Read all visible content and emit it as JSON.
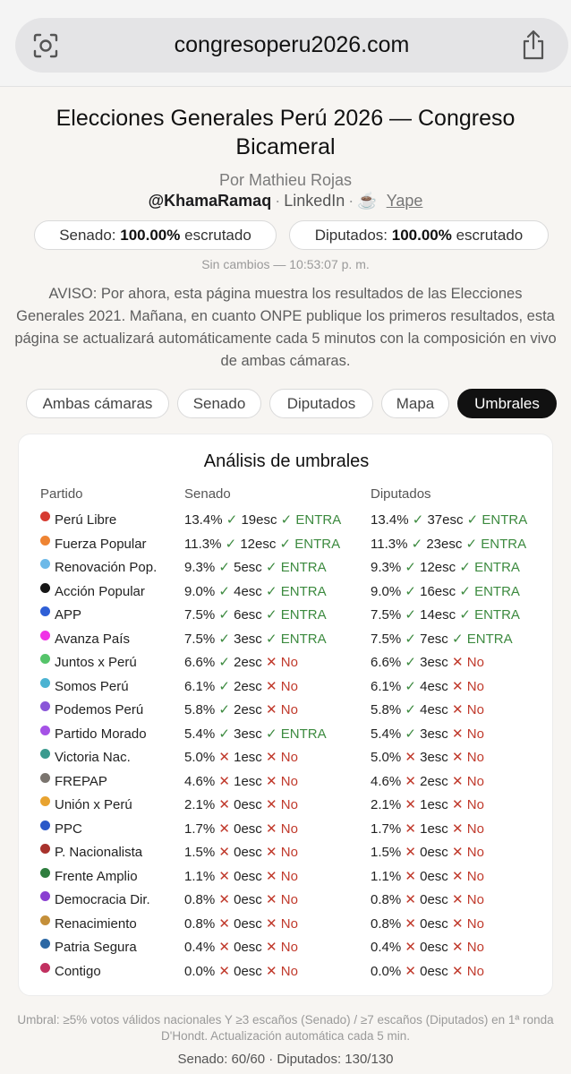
{
  "browser": {
    "url": "congresoperu2026.com",
    "lens_icon": "camera-lens-icon",
    "share_icon": "share-icon"
  },
  "header": {
    "title": "Elecciones Generales Perú 2026 — Congreso Bicameral",
    "author": "Por Mathieu Rojas",
    "handle": "@KhamaRamaq",
    "separator": "·",
    "linkedin": "LinkedIn",
    "yape_icon": "☕",
    "yape": "Yape"
  },
  "status": {
    "senado_label": "Senado:",
    "senado_pct": "100.00%",
    "senado_suffix": "escrutado",
    "diputados_label": "Diputados:",
    "diputados_pct": "100.00%",
    "diputados_suffix": "escrutado",
    "updated": "Sin cambios — 10:53:07 p. m."
  },
  "notice": "AVISO: Por ahora, esta página muestra los resultados de las Elecciones Generales 2021. Mañana, en cuanto ONPE publique los primeros resultados, esta página se actualizará automáticamente cada 5 minutos con la composición en vivo de ambas cámaras.",
  "tabs": [
    {
      "label": "Ambas cámaras",
      "active": false
    },
    {
      "label": "Senado",
      "active": false
    },
    {
      "label": "Diputados",
      "active": false
    },
    {
      "label": "Mapa",
      "active": false
    },
    {
      "label": "Umbrales",
      "active": true
    }
  ],
  "table": {
    "title": "Análisis de umbrales",
    "headers": [
      "Partido",
      "Senado",
      "Diputados"
    ],
    "check": "✓",
    "cross": "✕",
    "rows": [
      {
        "party": "Perú Libre",
        "color": "#d63b32",
        "sen_pct": "13.4%",
        "sen_pct_ok": true,
        "sen_seats": "19esc",
        "sen_enter": true,
        "dip_pct": "13.4%",
        "dip_pct_ok": true,
        "dip_seats": "37esc",
        "dip_enter": true
      },
      {
        "party": "Fuerza Popular",
        "color": "#ee8433",
        "sen_pct": "11.3%",
        "sen_pct_ok": true,
        "sen_seats": "12esc",
        "sen_enter": true,
        "dip_pct": "11.3%",
        "dip_pct_ok": true,
        "dip_seats": "23esc",
        "dip_enter": true
      },
      {
        "party": "Renovación Pop.",
        "color": "#6db9e8",
        "sen_pct": "9.3%",
        "sen_pct_ok": true,
        "sen_seats": "5esc",
        "sen_enter": true,
        "dip_pct": "9.3%",
        "dip_pct_ok": true,
        "dip_seats": "12esc",
        "dip_enter": true
      },
      {
        "party": "Acción Popular",
        "color": "#161616",
        "sen_pct": "9.0%",
        "sen_pct_ok": true,
        "sen_seats": "4esc",
        "sen_enter": true,
        "dip_pct": "9.0%",
        "dip_pct_ok": true,
        "dip_seats": "16esc",
        "dip_enter": true
      },
      {
        "party": "APP",
        "color": "#2f5fd6",
        "sen_pct": "7.5%",
        "sen_pct_ok": true,
        "sen_seats": "6esc",
        "sen_enter": true,
        "dip_pct": "7.5%",
        "dip_pct_ok": true,
        "dip_seats": "14esc",
        "dip_enter": true
      },
      {
        "party": "Avanza País",
        "color": "#f032e6",
        "sen_pct": "7.5%",
        "sen_pct_ok": true,
        "sen_seats": "3esc",
        "sen_enter": true,
        "dip_pct": "7.5%",
        "dip_pct_ok": true,
        "dip_seats": "7esc",
        "dip_enter": true
      },
      {
        "party": "Juntos x Perú",
        "color": "#55c46a",
        "sen_pct": "6.6%",
        "sen_pct_ok": true,
        "sen_seats": "2esc",
        "sen_enter": false,
        "dip_pct": "6.6%",
        "dip_pct_ok": true,
        "dip_seats": "3esc",
        "dip_enter": false
      },
      {
        "party": "Somos Perú",
        "color": "#4bb3d2",
        "sen_pct": "6.1%",
        "sen_pct_ok": true,
        "sen_seats": "2esc",
        "sen_enter": false,
        "dip_pct": "6.1%",
        "dip_pct_ok": true,
        "dip_seats": "4esc",
        "dip_enter": false
      },
      {
        "party": "Podemos Perú",
        "color": "#8a56d8",
        "sen_pct": "5.8%",
        "sen_pct_ok": true,
        "sen_seats": "2esc",
        "sen_enter": false,
        "dip_pct": "5.8%",
        "dip_pct_ok": true,
        "dip_seats": "4esc",
        "dip_enter": false
      },
      {
        "party": "Partido Morado",
        "color": "#a552e6",
        "sen_pct": "5.4%",
        "sen_pct_ok": true,
        "sen_seats": "3esc",
        "sen_enter": true,
        "dip_pct": "5.4%",
        "dip_pct_ok": true,
        "dip_seats": "3esc",
        "dip_enter": false
      },
      {
        "party": "Victoria Nac.",
        "color": "#3a9a8e",
        "sen_pct": "5.0%",
        "sen_pct_ok": false,
        "sen_seats": "1esc",
        "sen_enter": false,
        "dip_pct": "5.0%",
        "dip_pct_ok": false,
        "dip_seats": "3esc",
        "dip_enter": false
      },
      {
        "party": "FREPAP",
        "color": "#7a746e",
        "sen_pct": "4.6%",
        "sen_pct_ok": false,
        "sen_seats": "1esc",
        "sen_enter": false,
        "dip_pct": "4.6%",
        "dip_pct_ok": false,
        "dip_seats": "2esc",
        "dip_enter": false
      },
      {
        "party": "Unión x Perú",
        "color": "#e8a330",
        "sen_pct": "2.1%",
        "sen_pct_ok": false,
        "sen_seats": "0esc",
        "sen_enter": false,
        "dip_pct": "2.1%",
        "dip_pct_ok": false,
        "dip_seats": "1esc",
        "dip_enter": false
      },
      {
        "party": "PPC",
        "color": "#2a58c8",
        "sen_pct": "1.7%",
        "sen_pct_ok": false,
        "sen_seats": "0esc",
        "sen_enter": false,
        "dip_pct": "1.7%",
        "dip_pct_ok": false,
        "dip_seats": "1esc",
        "dip_enter": false
      },
      {
        "party": "P. Nacionalista",
        "color": "#a8322c",
        "sen_pct": "1.5%",
        "sen_pct_ok": false,
        "sen_seats": "0esc",
        "sen_enter": false,
        "dip_pct": "1.5%",
        "dip_pct_ok": false,
        "dip_seats": "0esc",
        "dip_enter": false
      },
      {
        "party": "Frente Amplio",
        "color": "#2e7d3e",
        "sen_pct": "1.1%",
        "sen_pct_ok": false,
        "sen_seats": "0esc",
        "sen_enter": false,
        "dip_pct": "1.1%",
        "dip_pct_ok": false,
        "dip_seats": "0esc",
        "dip_enter": false
      },
      {
        "party": "Democracia Dir.",
        "color": "#8a3fd1",
        "sen_pct": "0.8%",
        "sen_pct_ok": false,
        "sen_seats": "0esc",
        "sen_enter": false,
        "dip_pct": "0.8%",
        "dip_pct_ok": false,
        "dip_seats": "0esc",
        "dip_enter": false
      },
      {
        "party": "Renacimiento",
        "color": "#c48f3a",
        "sen_pct": "0.8%",
        "sen_pct_ok": false,
        "sen_seats": "0esc",
        "sen_enter": false,
        "dip_pct": "0.8%",
        "dip_pct_ok": false,
        "dip_seats": "0esc",
        "dip_enter": false
      },
      {
        "party": "Patria Segura",
        "color": "#2c68a4",
        "sen_pct": "0.4%",
        "sen_pct_ok": false,
        "sen_seats": "0esc",
        "sen_enter": false,
        "dip_pct": "0.4%",
        "dip_pct_ok": false,
        "dip_seats": "0esc",
        "dip_enter": false
      },
      {
        "party": "Contigo",
        "color": "#c13060",
        "sen_pct": "0.0%",
        "sen_pct_ok": false,
        "sen_seats": "0esc",
        "sen_enter": false,
        "dip_pct": "0.0%",
        "dip_pct_ok": false,
        "dip_seats": "0esc",
        "dip_enter": false
      }
    ],
    "enter_label": "ENTRA",
    "no_label": "No"
  },
  "footer": {
    "note": "Umbral: ≥5% votos válidos nacionales Y ≥3 escaños (Senado) / ≥7 escaños (Diputados) en 1ª ronda D'Hondt. Actualización automática cada 5 min.",
    "totals": "Senado: 60/60 · Diputados: 130/130"
  }
}
